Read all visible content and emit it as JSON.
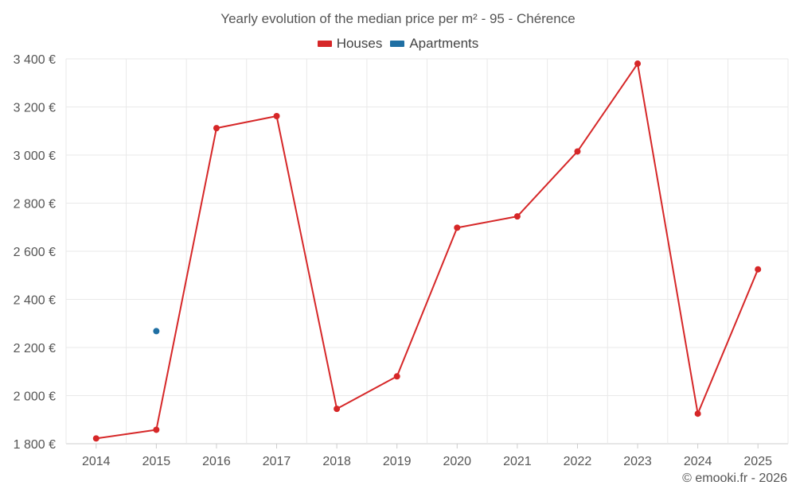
{
  "title": "Yearly evolution of the median price per m² - 95 - Chérence",
  "credit": "© emooki.fr - 2026",
  "colors": {
    "houses": "#d62728",
    "apartments": "#1f6fa3",
    "grid": "#e9e9e9",
    "axis": "#cccccc"
  },
  "chart_data": {
    "type": "line",
    "title": "Yearly evolution of the median price per m² - 95 - Chérence",
    "xlabel": "",
    "ylabel": "",
    "categories": [
      "2014",
      "2015",
      "2016",
      "2017",
      "2018",
      "2019",
      "2020",
      "2021",
      "2022",
      "2023",
      "2024",
      "2025"
    ],
    "ylim": [
      1800,
      3400
    ],
    "yticks": [
      1800,
      2000,
      2200,
      2400,
      2600,
      2800,
      3000,
      3200,
      3400
    ],
    "ytick_labels": [
      "1 800 €",
      "2 000 €",
      "2 200 €",
      "2 400 €",
      "2 600 €",
      "2 800 €",
      "3 000 €",
      "3 200 €",
      "3 400 €"
    ],
    "grid": true,
    "legend_position": "top-center",
    "series": [
      {
        "name": "Houses",
        "color": "#d62728",
        "values": [
          1822,
          1858,
          3112,
          3162,
          1945,
          2080,
          2698,
          2745,
          3015,
          3380,
          1925,
          2525
        ]
      },
      {
        "name": "Apartments",
        "color": "#1f6fa3",
        "values": [
          null,
          2268,
          null,
          null,
          null,
          null,
          null,
          null,
          null,
          null,
          null,
          null
        ]
      }
    ]
  }
}
